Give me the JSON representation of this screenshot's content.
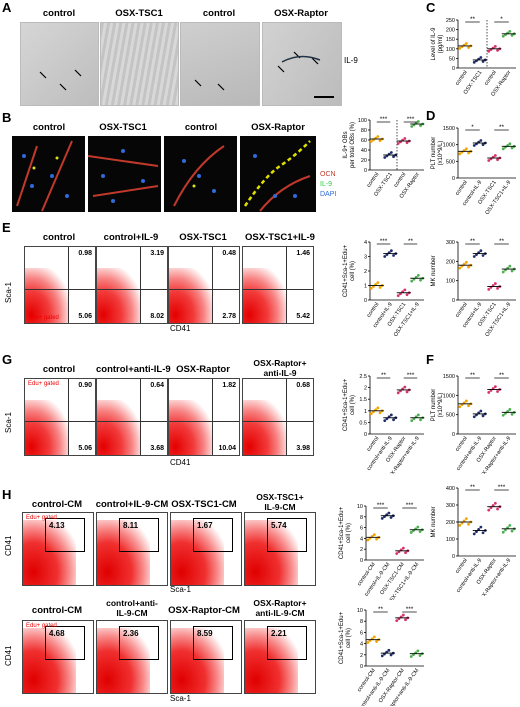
{
  "panel_letters": {
    "A": "A",
    "B": "B",
    "C": "C",
    "D": "D",
    "E": "E",
    "F": "F",
    "G": "G",
    "H": "H"
  },
  "panelA": {
    "titles": [
      "control",
      "OSX-TSC1",
      "control",
      "OSX-Raptor"
    ],
    "side_label": "IL-9"
  },
  "panelB": {
    "titles": [
      "control",
      "OSX-TSC1",
      "control",
      "OSX-Raptor"
    ],
    "legend": [
      "OCN",
      "IL-9",
      "DAPI"
    ],
    "legend_colors": [
      "#c0392b",
      "#2ecc40",
      "#2f6bd9"
    ]
  },
  "panelE": {
    "titles": [
      "control",
      "control+IL-9",
      "OSX-TSC1",
      "OSX-TSC1+IL-9"
    ],
    "q_top": [
      "0.98",
      "3.19",
      "0.48",
      "1.46"
    ],
    "q_bot": [
      "5.06",
      "8.02",
      "2.78",
      "5.42"
    ],
    "gate_tag": "Edu+ gated",
    "ylabel": "Sca-1",
    "xlabel": "CD41"
  },
  "panelG": {
    "titles": [
      "control",
      "control+anti-IL-9",
      "OSX-Raptor",
      "OSX-Raptor+\nanti-IL-9"
    ],
    "q_top": [
      "0.90",
      "0.64",
      "1.82",
      "0.68"
    ],
    "q_bot": [
      "5.06",
      "3.68",
      "10.04",
      "3.98"
    ],
    "gate_tag": "Edu+ gated",
    "ylabel": "Sca-1",
    "xlabel": "CD41"
  },
  "panelH1": {
    "titles": [
      "control-CM",
      "control+IL-9-CM",
      "OSX-TSC1-CM",
      "OSX-TSC1+\nIL-9-CM"
    ],
    "values": [
      "4.13",
      "8.11",
      "1.67",
      "5.74"
    ],
    "gate_tag": "Edu+ gated",
    "ylabel": "CD41",
    "xlabel": "Sca-1"
  },
  "panelH2": {
    "titles": [
      "control-CM",
      "control+anti-\nIL-9-CM",
      "OSX-Raptor-CM",
      "OSX-Raptor+\nanti-IL-9-CM"
    ],
    "values": [
      "4.68",
      "2.36",
      "8.59",
      "2.21"
    ],
    "gate_tag": "Edu+ gated",
    "ylabel": "CD41",
    "xlabel": "Sca-1"
  },
  "chart_data": [
    {
      "id": "C",
      "type": "scatter",
      "ylabel": "Level of IL-9\n(pg/ml)",
      "ylim": [
        0,
        250
      ],
      "yticks": [
        0,
        50,
        100,
        150,
        200,
        250
      ],
      "categories": [
        "control",
        "OSX-TSC1",
        "control",
        "OSX-Raptor"
      ],
      "means": [
        115,
        42,
        100,
        178
      ],
      "sig": [
        "**",
        "*"
      ],
      "separator_after": 1
    },
    {
      "id": "B-quant",
      "type": "scatter",
      "ylabel": "IL-9+ OBs\nper total OBs (%)",
      "ylim": [
        0,
        100
      ],
      "yticks": [
        0,
        20,
        40,
        60,
        80,
        100
      ],
      "categories": [
        "control",
        "OSX-TSC1",
        "control",
        "OSX-Raptor"
      ],
      "means": [
        62,
        30,
        58,
        92
      ],
      "sig": [
        "***",
        "***"
      ],
      "separator_after": 1
    },
    {
      "id": "D-PLT",
      "type": "scatter",
      "ylabel": "PLT number\n(x10^9/L)",
      "ylim": [
        0,
        1500
      ],
      "yticks": [
        0,
        500,
        1000,
        1500
      ],
      "categories": [
        "control",
        "control+IL-9",
        "OSX-TSC1",
        "OSX-TSC1+IL-9"
      ],
      "means": [
        800,
        1050,
        600,
        950
      ],
      "sig": [
        "*",
        "**"
      ]
    },
    {
      "id": "D-MK",
      "type": "scatter",
      "ylabel": "MK number",
      "ylim": [
        0,
        300
      ],
      "yticks": [
        0,
        100,
        200,
        300
      ],
      "categories": [
        "control",
        "control+IL-9",
        "OSX-TSC1",
        "OSX-TSC1+IL-9"
      ],
      "means": [
        180,
        240,
        70,
        160
      ],
      "sig": [
        "**",
        "**"
      ]
    },
    {
      "id": "E-quant",
      "type": "scatter",
      "ylabel": "CD41+Sca-1+Edu+\ncell (%)",
      "ylim": [
        0,
        4
      ],
      "yticks": [
        0,
        1,
        2,
        3,
        4
      ],
      "categories": [
        "control",
        "control+IL-9",
        "OSX-TSC1",
        "OSX-TSC1+IL-9"
      ],
      "means": [
        1.0,
        3.2,
        0.5,
        1.5
      ],
      "sig": [
        "***",
        "**"
      ]
    },
    {
      "id": "G-quant",
      "type": "scatter",
      "ylabel": "CD41+Sca-1+Edu+\ncell (%)",
      "ylim": [
        0,
        2.5
      ],
      "yticks": [
        0,
        0.5,
        1.0,
        1.5,
        2.0,
        2.5
      ],
      "categories": [
        "control",
        "control+anti-IL-9",
        "OSX-Raptor",
        "OSX-Raptor+anti-IL-9"
      ],
      "means": [
        1.0,
        0.7,
        1.9,
        0.7
      ],
      "sig": [
        "**",
        "***"
      ]
    },
    {
      "id": "F-PLT",
      "type": "scatter",
      "ylabel": "PLT number\n(x10^9/L)",
      "ylim": [
        0,
        1500
      ],
      "yticks": [
        0,
        500,
        1000,
        1500
      ],
      "categories": [
        "control",
        "control+anti-IL-9",
        "OSX-Raptor",
        "OSX-Raptor+anti-IL-9"
      ],
      "means": [
        780,
        520,
        1150,
        560
      ],
      "sig": [
        "**",
        "**"
      ]
    },
    {
      "id": "F-MK",
      "type": "scatter",
      "ylabel": "MK number",
      "ylim": [
        0,
        400
      ],
      "yticks": [
        0,
        100,
        200,
        300,
        400
      ],
      "categories": [
        "control",
        "control+anti-IL-9",
        "OSX-Raptor",
        "OSX-Raptor+anti-IL-9"
      ],
      "means": [
        200,
        150,
        290,
        160
      ],
      "sig": [
        "**",
        "***"
      ]
    },
    {
      "id": "H1-quant",
      "type": "scatter",
      "ylabel": "CD41+Sca-1+Edu+\ncell (%)",
      "ylim": [
        0,
        10
      ],
      "yticks": [
        0,
        2,
        4,
        6,
        8,
        10
      ],
      "categories": [
        "control-CM",
        "control+IL-9-CM",
        "OSX-TSC1-CM",
        "OSX-TSC1+IL-9-CM"
      ],
      "means": [
        4.2,
        8.2,
        1.7,
        5.6
      ],
      "sig": [
        "***",
        "***"
      ]
    },
    {
      "id": "H2-quant",
      "type": "scatter",
      "ylabel": "CD41+Sca-1+Edu+\ncell (%)",
      "ylim": [
        0,
        10
      ],
      "yticks": [
        0,
        2,
        4,
        6,
        8,
        10
      ],
      "categories": [
        "control-CM",
        "control+anti-IL-9-CM",
        "OSX-Raptor-CM",
        "OSX-Raptor+anti-IL-9-CM"
      ],
      "means": [
        4.7,
        2.3,
        8.6,
        2.2
      ],
      "sig": [
        "**",
        "***"
      ]
    }
  ]
}
